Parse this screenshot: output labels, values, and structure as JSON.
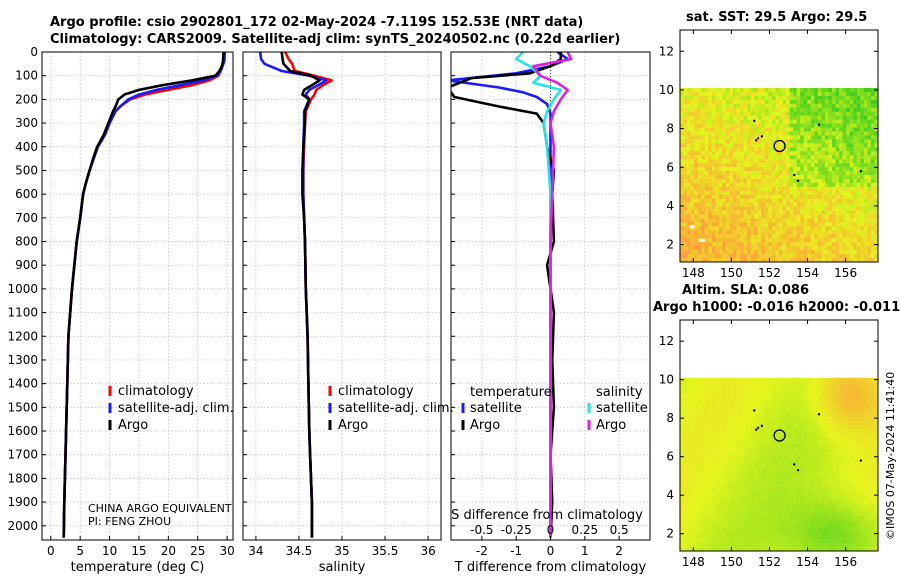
{
  "header": {
    "line1": "Argo profile: csio 2902801_172 02-May-2024 -7.119S 152.53E (NRT data)",
    "line2": "Climatology: CARS2009. Satellite-adj clim: synTS_20240502.nc (0.22d earlier)"
  },
  "colors": {
    "climatology": "#ff0000",
    "satellite": "#1a1aff",
    "argo": "#000000",
    "cyan": "#22e5e5",
    "magenta": "#e020e0"
  },
  "chart_data": [
    {
      "type": "line",
      "id": "temperature",
      "xlabel": "temperature (deg C)",
      "xlim": [
        -1.5,
        31
      ],
      "ylim": [
        2060,
        0
      ],
      "xticks": [
        0,
        5,
        10,
        15,
        20,
        25,
        30
      ],
      "yticks": [
        0,
        100,
        200,
        300,
        400,
        500,
        600,
        700,
        800,
        900,
        1000,
        1100,
        1200,
        1300,
        1400,
        1500,
        1600,
        1700,
        1800,
        1900,
        2000
      ],
      "legend": [
        "climatology",
        "satellite-adj. clim.",
        "Argo"
      ],
      "series": [
        {
          "name": "climatology",
          "color": "red",
          "x": [
            29.6,
            29.5,
            29.2,
            28.9,
            28.5,
            27.0,
            24.0,
            20.0,
            16.0,
            13.5,
            11.8,
            11.0,
            10.0,
            9.2,
            8.0,
            7.3,
            6.6,
            6.0,
            5.5,
            5.0,
            4.4,
            3.6,
            3.3,
            3.0,
            2.8,
            2.6,
            2.5,
            2.4,
            2.3,
            2.2
          ],
          "y": [
            0,
            40,
            60,
            80,
            100,
            120,
            140,
            160,
            180,
            200,
            230,
            250,
            300,
            350,
            400,
            450,
            500,
            550,
            600,
            700,
            800,
            1000,
            1100,
            1200,
            1400,
            1600,
            1700,
            1800,
            1900,
            2050
          ]
        },
        {
          "name": "satellite-adj. clim.",
          "color": "blue",
          "x": [
            29.6,
            29.5,
            29.2,
            28.9,
            28.3,
            26.0,
            22.0,
            18.0,
            15.0,
            13.2,
            11.8,
            11.0,
            10.0,
            9.2,
            8.0,
            7.3,
            6.6,
            6.0,
            5.5,
            5.0,
            4.4,
            3.6,
            3.3,
            3.0,
            2.8,
            2.6,
            2.5,
            2.4,
            2.3,
            2.2
          ],
          "y": [
            0,
            40,
            60,
            80,
            100,
            120,
            140,
            160,
            180,
            200,
            230,
            250,
            300,
            350,
            400,
            450,
            500,
            550,
            600,
            700,
            800,
            1000,
            1100,
            1200,
            1400,
            1600,
            1700,
            1800,
            1900,
            2050
          ]
        },
        {
          "name": "Argo",
          "color": "black",
          "x": [
            29.4,
            29.3,
            29.1,
            28.7,
            28.0,
            24.0,
            19.0,
            15.0,
            12.5,
            11.5,
            11.0,
            10.6,
            9.8,
            9.0,
            7.9,
            7.2,
            6.6,
            6.0,
            5.5,
            5.0,
            4.4,
            3.6,
            3.3,
            3.0,
            2.8,
            2.6,
            2.5,
            2.4,
            2.3,
            2.2
          ],
          "y": [
            0,
            40,
            60,
            80,
            100,
            120,
            140,
            160,
            180,
            200,
            230,
            250,
            300,
            350,
            400,
            450,
            500,
            550,
            600,
            700,
            800,
            1000,
            1100,
            1200,
            1400,
            1600,
            1700,
            1800,
            1900,
            2050
          ]
        }
      ]
    },
    {
      "type": "line",
      "id": "salinity",
      "xlabel": "salinity",
      "xlim": [
        33.85,
        36.15
      ],
      "ylim": [
        2060,
        0
      ],
      "xticks": [
        34,
        34.5,
        35,
        35.5,
        36
      ],
      "legend": [
        "climatology",
        "satellite-adj. clim.",
        "Argo"
      ],
      "series": [
        {
          "name": "climatology",
          "color": "red",
          "x": [
            34.34,
            34.38,
            34.42,
            34.45,
            34.68,
            34.88,
            34.78,
            34.7,
            34.68,
            34.64,
            34.58,
            34.57,
            34.56,
            34.55,
            34.55,
            34.56,
            34.57,
            34.58,
            34.6,
            34.61,
            34.62,
            34.63,
            34.64,
            34.65,
            34.65
          ],
          "y": [
            0,
            30,
            50,
            80,
            100,
            120,
            140,
            160,
            180,
            200,
            250,
            300,
            400,
            500,
            600,
            700,
            800,
            1000,
            1200,
            1400,
            1600,
            1700,
            1800,
            1900,
            2050
          ]
        },
        {
          "name": "satellite-adj. clim.",
          "color": "blue",
          "x": [
            34.05,
            34.06,
            34.1,
            34.3,
            34.62,
            34.82,
            34.72,
            34.62,
            34.58,
            34.62,
            34.56,
            34.56,
            34.55,
            34.55,
            34.55,
            34.56,
            34.57,
            34.58,
            34.6,
            34.61,
            34.62,
            34.63,
            34.64,
            34.65,
            34.65
          ],
          "y": [
            0,
            30,
            50,
            80,
            100,
            120,
            140,
            160,
            180,
            200,
            250,
            300,
            400,
            500,
            600,
            700,
            800,
            1000,
            1200,
            1400,
            1600,
            1700,
            1800,
            1900,
            2050
          ]
        },
        {
          "name": "Argo",
          "color": "black",
          "x": [
            34.3,
            34.31,
            34.32,
            34.4,
            34.64,
            34.74,
            34.65,
            34.56,
            34.54,
            34.62,
            34.57,
            34.57,
            34.55,
            34.54,
            34.54,
            34.56,
            34.57,
            34.58,
            34.6,
            34.61,
            34.62,
            34.63,
            34.64,
            34.65,
            34.65
          ],
          "y": [
            0,
            30,
            50,
            80,
            100,
            120,
            140,
            160,
            180,
            200,
            250,
            300,
            400,
            500,
            600,
            700,
            800,
            1000,
            1200,
            1400,
            1600,
            1700,
            1800,
            1900,
            2050
          ]
        }
      ]
    },
    {
      "type": "line",
      "id": "difference",
      "xlabel": "T difference from climatology",
      "top_label": "S difference from climatology",
      "xlim": [
        -2.9,
        2.9
      ],
      "ylim": [
        2060,
        0
      ],
      "xticks": [
        -2,
        -1,
        0,
        1,
        2
      ],
      "top_ticks": [
        "-0.5",
        "-0.25",
        "0",
        "0.25",
        "0.5"
      ],
      "top_ticks_t": [
        -2,
        -1,
        0,
        1,
        2
      ],
      "legend_titles": [
        "temperature",
        "salinity"
      ],
      "legend_t": [
        "satellite",
        "Argo"
      ],
      "legend_s": [
        "satellite",
        "Argo"
      ],
      "series": [
        {
          "name": "temperature satellite",
          "color": "blue",
          "x": [
            0.2,
            0.5,
            0.0,
            -1.0,
            -3.0,
            -1.5,
            -0.8,
            -0.4,
            -0.1,
            0.0,
            0.0,
            0.0,
            0.0,
            0.0,
            0.0,
            0.0,
            0.0,
            0.0,
            0.0
          ],
          "y": [
            0,
            30,
            60,
            90,
            120,
            150,
            170,
            190,
            220,
            260,
            300,
            400,
            600,
            800,
            1000,
            1300,
            1600,
            1800,
            2050
          ]
        },
        {
          "name": "temperature Argo",
          "color": "black",
          "x": [
            0.3,
            0.3,
            0.0,
            -0.6,
            -2.3,
            -3.0,
            -2.8,
            -1.5,
            -0.4,
            -0.2,
            -0.1,
            0.1,
            0.05,
            0.1,
            -0.1,
            0.1,
            0.05,
            0.1,
            0.0,
            0.05,
            0.0
          ],
          "y": [
            0,
            30,
            60,
            90,
            110,
            150,
            190,
            230,
            260,
            300,
            400,
            500,
            600,
            800,
            900,
            1100,
            1300,
            1500,
            1700,
            1900,
            2050
          ]
        },
        {
          "name": "salinity satellite",
          "color": "#22e5e5",
          "x": [
            -0.8,
            -1.0,
            -0.6,
            -0.3,
            -0.5,
            0.3,
            0.1,
            -0.1,
            -0.2,
            -0.1,
            0.0,
            0.0,
            0.0,
            0.0,
            0.0
          ],
          "y": [
            0,
            30,
            60,
            100,
            130,
            160,
            200,
            250,
            300,
            400,
            600,
            800,
            1200,
            1600,
            2050
          ]
        },
        {
          "name": "salinity Argo",
          "color": "#e020e0",
          "x": [
            0.5,
            0.6,
            -0.5,
            -0.3,
            0.2,
            0.5,
            0.3,
            0.1,
            0.0,
            0.1,
            0.05,
            0.0,
            0.0,
            0.0,
            0.0
          ],
          "y": [
            0,
            30,
            60,
            100,
            130,
            160,
            200,
            250,
            300,
            400,
            600,
            800,
            1200,
            1600,
            2050
          ]
        }
      ]
    },
    {
      "type": "heatmap",
      "id": "sst-map",
      "title": "sat. SST: 29.5 Argo: 29.5",
      "xlim": [
        147.3,
        157.7
      ],
      "ylim": [
        1.1,
        13.1
      ],
      "xticks": [
        148,
        150,
        152,
        154,
        156
      ],
      "yticks": [
        2,
        4,
        6,
        8,
        10,
        12
      ],
      "nodata_above_y": 10.1,
      "float_position": [
        152.53,
        7.1
      ]
    },
    {
      "type": "heatmap",
      "id": "sla-map",
      "title_line1": "Altim. SLA: 0.086",
      "title_line2": "Argo h1000: -0.016 h2000: -0.011",
      "xlim": [
        147.3,
        157.7
      ],
      "ylim": [
        1.1,
        13.1
      ],
      "xticks": [
        148,
        150,
        152,
        154,
        156
      ],
      "yticks": [
        2,
        4,
        6,
        8,
        10,
        12
      ],
      "nodata_above_y": 10.1,
      "float_position": [
        152.53,
        7.1
      ]
    }
  ],
  "notes": {
    "line1": "CHINA ARGO EQUIVALENT",
    "line2": "PI: FENG ZHOU"
  },
  "timestamp": "©IMOS 07-May-2024 11:41:40"
}
